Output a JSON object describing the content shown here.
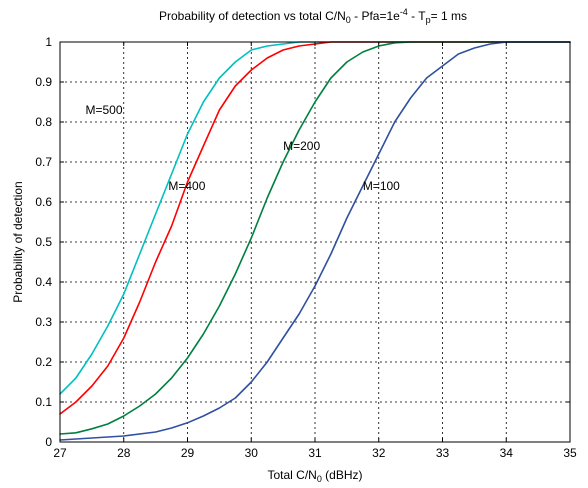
{
  "chart_data": {
    "type": "line",
    "title": "Probability of detection vs total C/N0 - Pfa=1e-4 - Tp= 1 ms",
    "title_parts": {
      "pre": "Probability of detection vs total C/N",
      "sub1": "0",
      "mid": " - Pfa=1e",
      "sup": "-4",
      "post_pre": " - T",
      "sub2": "p",
      "post": "= 1 ms"
    },
    "xlabel": "Total C/N0 (dBHz)",
    "xlabel_parts": {
      "pre": "Total C/N",
      "sub": "0",
      "post": " (dBHz)"
    },
    "ylabel": "Probability of detection",
    "xlim": [
      27,
      35
    ],
    "ylim": [
      0,
      1
    ],
    "x_ticks": [
      27,
      28,
      29,
      30,
      31,
      32,
      33,
      34,
      35
    ],
    "y_ticks": [
      0,
      0.1,
      0.2,
      0.3,
      0.4,
      0.5,
      0.6,
      0.7,
      0.8,
      0.9,
      1
    ],
    "grid": true,
    "series": [
      {
        "name": "M=500",
        "color": "#00c0c0",
        "x": [
          27.0,
          27.25,
          27.5,
          27.75,
          28.0,
          28.25,
          28.5,
          28.75,
          29.0,
          29.25,
          29.5,
          29.75,
          30.0,
          30.25,
          30.5,
          30.75,
          31.0,
          35.0
        ],
        "values": [
          0.12,
          0.16,
          0.22,
          0.29,
          0.37,
          0.47,
          0.57,
          0.67,
          0.77,
          0.85,
          0.91,
          0.95,
          0.98,
          0.99,
          0.995,
          1.0,
          1.0,
          1.0
        ]
      },
      {
        "name": "M=400",
        "color": "#ff0000",
        "x": [
          27.0,
          27.25,
          27.5,
          27.75,
          28.0,
          28.25,
          28.5,
          28.75,
          29.0,
          29.25,
          29.5,
          29.75,
          30.0,
          30.25,
          30.5,
          30.75,
          31.0,
          31.25,
          31.5,
          35.0
        ],
        "values": [
          0.07,
          0.1,
          0.14,
          0.19,
          0.26,
          0.35,
          0.45,
          0.54,
          0.65,
          0.74,
          0.83,
          0.89,
          0.93,
          0.96,
          0.98,
          0.99,
          0.995,
          1.0,
          1.0,
          1.0
        ]
      },
      {
        "name": "M=200",
        "color": "#008040",
        "x": [
          27.0,
          27.25,
          27.5,
          27.75,
          28.0,
          28.25,
          28.5,
          28.75,
          29.0,
          29.25,
          29.5,
          29.75,
          30.0,
          30.25,
          30.5,
          30.75,
          31.0,
          31.25,
          31.5,
          31.75,
          32.0,
          32.25,
          32.5,
          35.0
        ],
        "values": [
          0.02,
          0.023,
          0.033,
          0.045,
          0.065,
          0.09,
          0.12,
          0.16,
          0.21,
          0.27,
          0.34,
          0.42,
          0.51,
          0.61,
          0.7,
          0.78,
          0.85,
          0.91,
          0.95,
          0.975,
          0.99,
          0.998,
          1.0,
          1.0
        ]
      },
      {
        "name": "M=100",
        "color": "#3050a0",
        "x": [
          27.0,
          27.5,
          28.0,
          28.5,
          28.75,
          29.0,
          29.25,
          29.5,
          29.75,
          30.0,
          30.25,
          30.5,
          30.75,
          31.0,
          31.25,
          31.5,
          31.75,
          32.0,
          32.25,
          32.5,
          32.75,
          33.0,
          33.25,
          33.5,
          33.75,
          34.0,
          35.0
        ],
        "values": [
          0.005,
          0.01,
          0.015,
          0.025,
          0.035,
          0.048,
          0.065,
          0.085,
          0.11,
          0.15,
          0.2,
          0.26,
          0.32,
          0.39,
          0.47,
          0.56,
          0.64,
          0.72,
          0.8,
          0.86,
          0.91,
          0.94,
          0.97,
          0.985,
          0.995,
          1.0,
          1.0
        ]
      }
    ],
    "annotations": [
      {
        "text": "M=500",
        "x": 27.4,
        "y": 0.82
      },
      {
        "text": "M=400",
        "x": 28.7,
        "y": 0.63
      },
      {
        "text": "M=200",
        "x": 30.5,
        "y": 0.73
      },
      {
        "text": "M=100",
        "x": 31.75,
        "y": 0.63
      }
    ]
  }
}
